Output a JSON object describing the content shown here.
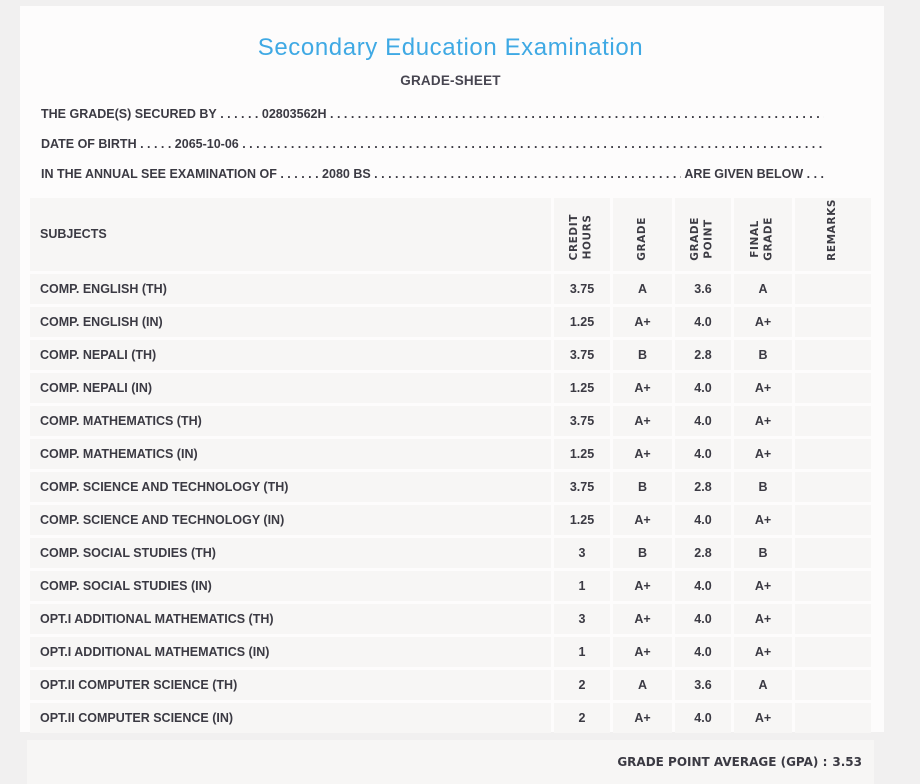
{
  "page": {
    "title": "Secondary Education Examination",
    "subtitle": "GRADE-SHEET"
  },
  "colors": {
    "title_blue": "#3fa9e4",
    "text_dark": "#3b3a43",
    "cell_background": "#f7f6f5"
  },
  "dot_fill": " . . . . . . . . . . . . . . . . . . . . . . . . . . . . . . . . . . . . . . . . . . . . . . . . . . . . . . . . . . . . . . . . . . . . . . . . . . . . . . . . . . . . . . . . . . . . . . . . . . . . . . . . . . . . . . . . . . . .",
  "info_lines": [
    {
      "label": "THE GRADE(S) SECURED BY",
      "sep": " . . . . . . ",
      "value": "02803562H",
      "tail": ""
    },
    {
      "label": "DATE OF BIRTH",
      "sep": " . . . . . ",
      "value": "2065-10-06",
      "tail": ""
    },
    {
      "label": "IN THE ANNUAL SEE EXAMINATION OF",
      "sep": " . . . . . . ",
      "value": "2080 BS",
      "tail": " ARE GIVEN BELOW . . ."
    }
  ],
  "table": {
    "headers": {
      "subjects": "SUBJECTS",
      "credit_hours": "CREDIT\nHOURS",
      "grade": "GRADE",
      "grade_point": "GRADE\nPOINT",
      "final_grade": "FINAL\nGRADE",
      "remarks": "REMARKS"
    },
    "rows": [
      {
        "subject": "COMP. ENGLISH (TH)",
        "credit_hours": "3.75",
        "grade": "A",
        "grade_point": "3.6",
        "final_grade": "A",
        "remarks": ""
      },
      {
        "subject": "COMP. ENGLISH (IN)",
        "credit_hours": "1.25",
        "grade": "A+",
        "grade_point": "4.0",
        "final_grade": "A+",
        "remarks": ""
      },
      {
        "subject": "COMP. NEPALI (TH)",
        "credit_hours": "3.75",
        "grade": "B",
        "grade_point": "2.8",
        "final_grade": "B",
        "remarks": ""
      },
      {
        "subject": "COMP. NEPALI (IN)",
        "credit_hours": "1.25",
        "grade": "A+",
        "grade_point": "4.0",
        "final_grade": "A+",
        "remarks": ""
      },
      {
        "subject": "COMP. MATHEMATICS (TH)",
        "credit_hours": "3.75",
        "grade": "A+",
        "grade_point": "4.0",
        "final_grade": "A+",
        "remarks": ""
      },
      {
        "subject": "COMP. MATHEMATICS (IN)",
        "credit_hours": "1.25",
        "grade": "A+",
        "grade_point": "4.0",
        "final_grade": "A+",
        "remarks": ""
      },
      {
        "subject": "COMP. SCIENCE AND TECHNOLOGY (TH)",
        "credit_hours": "3.75",
        "grade": "B",
        "grade_point": "2.8",
        "final_grade": "B",
        "remarks": ""
      },
      {
        "subject": "COMP. SCIENCE AND TECHNOLOGY (IN)",
        "credit_hours": "1.25",
        "grade": "A+",
        "grade_point": "4.0",
        "final_grade": "A+",
        "remarks": ""
      },
      {
        "subject": "COMP. SOCIAL STUDIES (TH)",
        "credit_hours": "3",
        "grade": "B",
        "grade_point": "2.8",
        "final_grade": "B",
        "remarks": ""
      },
      {
        "subject": "COMP. SOCIAL STUDIES (IN)",
        "credit_hours": "1",
        "grade": "A+",
        "grade_point": "4.0",
        "final_grade": "A+",
        "remarks": ""
      },
      {
        "subject": "OPT.I ADDITIONAL MATHEMATICS (TH)",
        "credit_hours": "3",
        "grade": "A+",
        "grade_point": "4.0",
        "final_grade": "A+",
        "remarks": ""
      },
      {
        "subject": "OPT.I ADDITIONAL MATHEMATICS (IN)",
        "credit_hours": "1",
        "grade": "A+",
        "grade_point": "4.0",
        "final_grade": "A+",
        "remarks": ""
      },
      {
        "subject": "OPT.II COMPUTER SCIENCE (TH)",
        "credit_hours": "2",
        "grade": "A",
        "grade_point": "3.6",
        "final_grade": "A",
        "remarks": ""
      },
      {
        "subject": "OPT.II COMPUTER SCIENCE (IN)",
        "credit_hours": "2",
        "grade": "A+",
        "grade_point": "4.0",
        "final_grade": "A+",
        "remarks": ""
      }
    ]
  },
  "footer": {
    "gpa_label": "GRADE POINT AVERAGE (GPA) :",
    "gpa_value": "3.53"
  }
}
